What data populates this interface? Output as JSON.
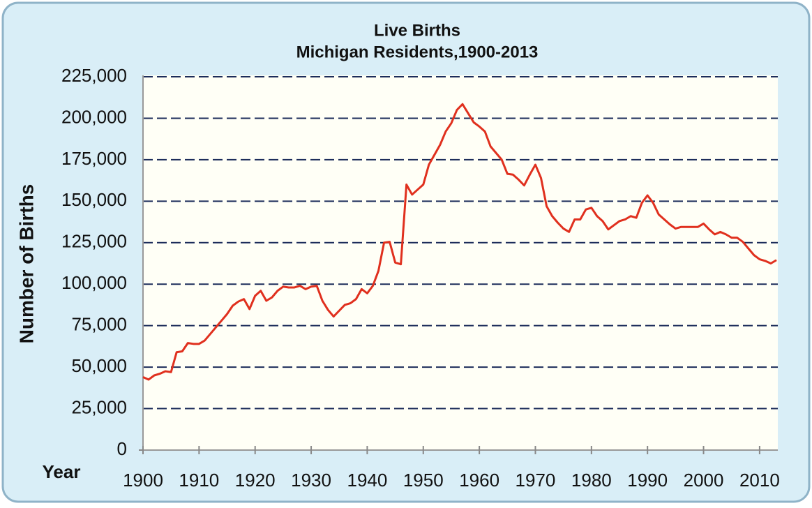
{
  "chart_data": {
    "type": "line",
    "title": "Live Births",
    "subtitle": "Michigan Residents,1900-2013",
    "xlabel": "Year",
    "ylabel": "Number of Births",
    "x": [
      1900,
      1901,
      1902,
      1903,
      1904,
      1905,
      1906,
      1907,
      1908,
      1909,
      1910,
      1911,
      1912,
      1913,
      1914,
      1915,
      1916,
      1917,
      1918,
      1919,
      1920,
      1921,
      1922,
      1923,
      1924,
      1925,
      1926,
      1927,
      1928,
      1929,
      1930,
      1931,
      1932,
      1933,
      1934,
      1935,
      1936,
      1937,
      1938,
      1939,
      1940,
      1941,
      1942,
      1943,
      1944,
      1945,
      1946,
      1947,
      1948,
      1949,
      1950,
      1951,
      1952,
      1953,
      1954,
      1955,
      1956,
      1957,
      1958,
      1959,
      1960,
      1961,
      1962,
      1963,
      1964,
      1965,
      1966,
      1967,
      1968,
      1969,
      1970,
      1971,
      1972,
      1973,
      1974,
      1975,
      1976,
      1977,
      1978,
      1979,
      1980,
      1981,
      1982,
      1983,
      1984,
      1985,
      1986,
      1987,
      1988,
      1989,
      1990,
      1991,
      1992,
      1993,
      1994,
      1995,
      1996,
      1997,
      1998,
      1999,
      2000,
      2001,
      2002,
      2003,
      2004,
      2005,
      2006,
      2007,
      2008,
      2009,
      2010,
      2011,
      2012,
      2013
    ],
    "series": [
      {
        "name": "Live Births",
        "color": "#e0301e",
        "values": [
          44000,
          42500,
          45000,
          46000,
          47500,
          47000,
          59000,
          59500,
          64500,
          64000,
          64000,
          66000,
          70000,
          74000,
          78000,
          82000,
          87000,
          89500,
          91000,
          85000,
          93000,
          96000,
          90000,
          92000,
          96000,
          98500,
          98000,
          98000,
          99000,
          97000,
          98500,
          99000,
          90000,
          84500,
          80500,
          84000,
          87500,
          88500,
          91000,
          97000,
          94500,
          99000,
          108000,
          125000,
          125500,
          113000,
          112000,
          160000,
          154000,
          157000,
          160000,
          172000,
          178000,
          184000,
          192000,
          197000,
          205000,
          208500,
          203000,
          197500,
          195000,
          192000,
          183000,
          179000,
          175000,
          166500,
          166000,
          163000,
          159500,
          166000,
          172000,
          164000,
          147000,
          141000,
          137000,
          133500,
          131500,
          139000,
          139000,
          145000,
          146000,
          141000,
          138000,
          133000,
          135500,
          138000,
          139000,
          141000,
          140000,
          149000,
          153500,
          149000,
          142000,
          139000,
          136000,
          133500,
          134500,
          134500,
          134500,
          134500,
          136500,
          133000,
          130000,
          131500,
          130000,
          128000,
          128000,
          125500,
          121500,
          117500,
          115000,
          114000,
          112500,
          114500
        ]
      }
    ],
    "xlim": [
      1900,
      2013
    ],
    "xticks": [
      1900,
      1910,
      1920,
      1930,
      1940,
      1950,
      1960,
      1970,
      1980,
      1990,
      2000,
      2010
    ],
    "ylim": [
      0,
      225000
    ],
    "yticks": [
      0,
      {
        "value": 25000,
        "label": "25,000"
      },
      {
        "value": 50000,
        "label": "50,000"
      },
      {
        "value": 75000,
        "label": "75,000"
      },
      {
        "value": 100000,
        "label": "100,000"
      },
      {
        "value": 125000,
        "label": "125,000"
      },
      {
        "value": 150000,
        "label": "150,000"
      },
      {
        "value": 175000,
        "label": "175,000"
      },
      {
        "value": 200000,
        "label": "200,000"
      },
      {
        "value": 225000,
        "label": "225,000"
      }
    ],
    "grid": true
  }
}
